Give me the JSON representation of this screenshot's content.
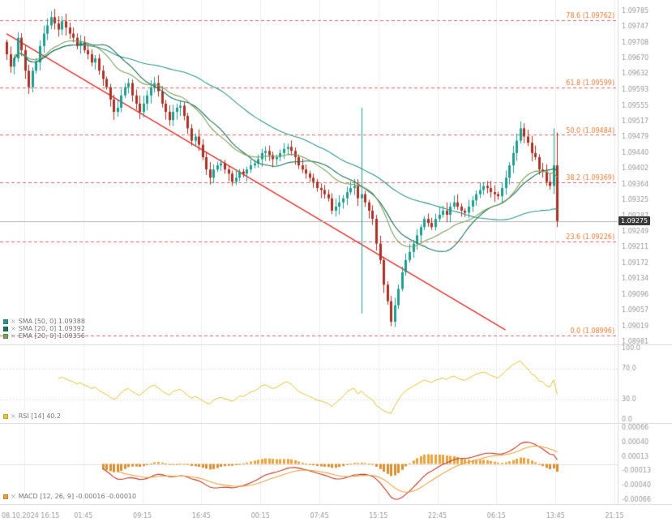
{
  "icons": {
    "remove": "×"
  },
  "colors": {
    "up": "#1f9e8e",
    "down": "#a93226",
    "trendline": "#e03131",
    "fib_line": "#e06666",
    "fib_label": "#e07b39",
    "rsi": "#e3c33c",
    "macd_line": "#c0392b",
    "signal_line": "#e8a33d",
    "hist_pos": "#e7a33c",
    "hist_neg": "#d88f2f",
    "hist_neg_strong": "#b5452f",
    "axis_text": "#999999",
    "grid": "#f0f0f0",
    "divider": "#dcdcdc",
    "price_line": "#b4b4b4",
    "badge_bg": "#3a3a3a",
    "badge_text": "#ffffff",
    "ma": [
      "#2e9688",
      "#1f6f5c",
      "#7aa05a"
    ]
  },
  "chart_data": {
    "type": "candlestick",
    "panels": [
      "price",
      "rsi",
      "macd"
    ],
    "price_axis": {
      "ticks": [
        "1.09785",
        "1.09747",
        "1.09708",
        "1.09670",
        "1.09632",
        "1.09593",
        "1.09555",
        "1.09517",
        "1.09479",
        "1.09440",
        "1.09402",
        "1.09364",
        "1.09325",
        "1.09287",
        "1.09249",
        "1.09211",
        "1.09172",
        "1.09134",
        "1.09096",
        "1.09057",
        "1.09019",
        "1.08981"
      ],
      "current_price": "1.09275"
    },
    "time_axis": {
      "labels": [
        "08.10.2024 16:15",
        "01:45",
        "09:15",
        "16:45",
        "00:15",
        "07:45",
        "15:15",
        "22:45",
        "06:15",
        "13:45",
        "21:15"
      ]
    },
    "rsi_axis": {
      "ticks": [
        "100.0",
        "70.0",
        "30.0",
        "0.0"
      ],
      "values": [
        100,
        70,
        30,
        0
      ]
    },
    "macd_axis": {
      "ticks": [
        "0.00066",
        "0.00040",
        "0.00013",
        "-0.00013",
        "-0.00040",
        "-0.00066"
      ]
    },
    "fib_levels": [
      {
        "label": "78.6 (1.09762)",
        "price": 1.09762
      },
      {
        "label": "61.8 (1.09599)",
        "price": 1.09599
      },
      {
        "label": "50.0 (1.09484)",
        "price": 1.09484
      },
      {
        "label": "38.2 (1.09369)",
        "price": 1.09369
      },
      {
        "label": "23.6 (1.09226)",
        "price": 1.09226
      },
      {
        "label": "0.0 (1.08996)",
        "price": 1.08996
      }
    ],
    "trendline": {
      "x1_index": 0,
      "price1": 1.0973,
      "x2_index": 135,
      "price2": 1.0901
    },
    "legends": {
      "ma": [
        {
          "label": "SMA [50, 0]  1.09388"
        },
        {
          "label": "SMA [20, 0]  1.09392"
        },
        {
          "label": "EMA [20, 0]  1.09356"
        }
      ],
      "rsi": {
        "label": "RSI [14]  40.2"
      },
      "macd": {
        "label": "MACD [12, 26, 9]  -0.00016  -0.00010"
      }
    },
    "candles": {
      "closes": [
        1.0968,
        1.0965,
        1.0967,
        1.0972,
        1.0969,
        1.0964,
        1.096,
        1.0964,
        1.0966,
        1.097,
        1.0973,
        1.0975,
        1.0977,
        1.09755,
        1.0974,
        1.0976,
        1.09745,
        1.0973,
        1.0972,
        1.097,
        1.0971,
        1.0969,
        1.0968,
        1.0966,
        1.0967,
        1.0964,
        1.0962,
        1.096,
        1.0957,
        1.0954,
        1.0955,
        1.0958,
        1.096,
        1.0961,
        1.0958,
        1.0956,
        1.0954,
        1.0956,
        1.0958,
        1.096,
        1.0961,
        1.0959,
        1.0956,
        1.0954,
        1.0952,
        1.0954,
        1.0955,
        1.09555,
        1.0953,
        1.095,
        1.0947,
        1.0948,
        1.0946,
        1.0943,
        1.094,
        1.0938,
        1.094,
        1.0941,
        1.09415,
        1.094,
        1.0939,
        1.0937,
        1.0938,
        1.09395,
        1.0939,
        1.094,
        1.0941,
        1.09415,
        1.09425,
        1.0944,
        1.09445,
        1.09435,
        1.09425,
        1.0943,
        1.0944,
        1.0945,
        1.09455,
        1.09445,
        1.0943,
        1.0941,
        1.094,
        1.0939,
        1.0938,
        1.0937,
        1.09355,
        1.0935,
        1.0934,
        1.0933,
        1.093,
        1.0931,
        1.0932,
        1.0933,
        1.09345,
        1.09355,
        1.0936,
        1.0933,
        1.0934,
        1.0932,
        1.093,
        1.0928,
        1.0922,
        1.0918,
        1.0912,
        1.0908,
        1.0903,
        1.0907,
        1.0911,
        1.0915,
        1.0918,
        1.092,
        1.0922,
        1.0924,
        1.0926,
        1.0928,
        1.0927,
        1.0926,
        1.0928,
        1.0929,
        1.093,
        1.0929,
        1.0931,
        1.0932,
        1.0931,
        1.093,
        1.09295,
        1.0931,
        1.09325,
        1.0934,
        1.0935,
        1.0936,
        1.09355,
        1.09345,
        1.0934,
        1.09335,
        1.09355,
        1.0938,
        1.0941,
        1.0944,
        1.0947,
        1.095,
        1.0948,
        1.09465,
        1.0944,
        1.0943,
        1.094,
        1.09395,
        1.0937,
        1.0936,
        1.0941,
        1.09275
      ],
      "overrides": {
        "12": {
          "h": 1.09785
        },
        "96": {
          "h": 1.0955,
          "l": 1.0905
        },
        "104": {
          "l": 1.09019
        },
        "139": {
          "h": 1.09517
        },
        "148": {
          "h": 1.095
        },
        "149": {
          "h": 1.0949,
          "l": 1.0926
        }
      }
    }
  }
}
